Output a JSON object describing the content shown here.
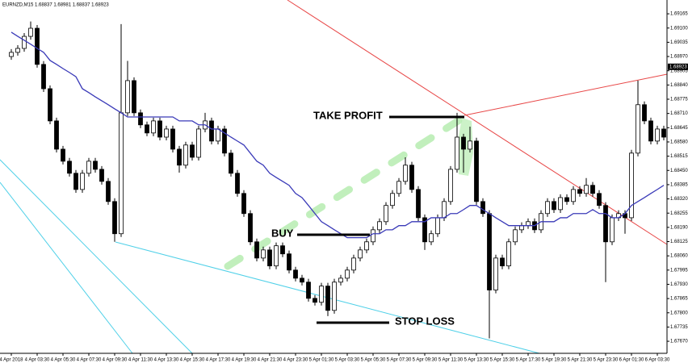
{
  "chart_data": {
    "type": "candlestick",
    "title": "EURNZD,M15  1.68837 1.68981 1.68837 1.68923",
    "categories": [
      "4 Apr 2018",
      null,
      null,
      null,
      "4 Apr 03:30",
      null,
      null,
      null,
      "4 Apr 05:30",
      null,
      null,
      null,
      "4 Apr 07:30",
      null,
      null,
      null,
      "4 Apr 09:30",
      null,
      null,
      null,
      "4 Apr 11:30",
      null,
      null,
      null,
      "4 Apr 13:30",
      null,
      null,
      null,
      "4 Apr 15:30",
      null,
      null,
      null,
      "4 Apr 17:30",
      null,
      null,
      null,
      "4 Apr 19:30",
      null,
      null,
      null,
      "4 Apr 21:30",
      null,
      null,
      null,
      "4 Apr 23:30",
      null,
      null,
      null,
      "5 Apr 01:30",
      null,
      null,
      null,
      "5 Apr 03:30",
      null,
      null,
      null,
      "5 Apr 05:30",
      null,
      null,
      null,
      "5 Apr 07:30",
      null,
      null,
      null,
      "5 Apr 09:30",
      null,
      null,
      null,
      "5 Apr 11:30",
      null,
      null,
      null,
      "5 Apr 13:30",
      null,
      null,
      null,
      "5 Apr 15:30",
      null,
      null,
      null,
      "5 Apr 17:30",
      null,
      null,
      null,
      "5 Apr 19:30",
      null,
      null,
      null,
      "5 Apr 21:30",
      null,
      null,
      null,
      "5 Apr 23:30",
      null,
      null,
      null,
      "6 Apr 01:30",
      null,
      null,
      null,
      "6 Apr 03:30",
      null
    ],
    "open": [
      1.6897,
      1.68989,
      1.69007,
      1.69062,
      1.69099,
      1.68934,
      1.68823,
      1.68676,
      1.68547,
      1.68492,
      1.68437,
      1.68363,
      1.68437,
      1.68492,
      1.68455,
      1.684,
      1.68308,
      1.68161,
      1.68713,
      1.6886,
      1.68713,
      1.68658,
      1.68621,
      1.68676,
      1.68602,
      1.68639,
      1.68547,
      1.68474,
      1.68566,
      1.6851,
      1.68639,
      1.68676,
      1.68584,
      1.68639,
      1.68529,
      1.68437,
      1.68345,
      1.68253,
      1.68124,
      1.6805,
      1.68087,
      1.68014,
      1.68106,
      1.68069,
      1.67995,
      1.67958,
      1.6794,
      1.67866,
      1.67848,
      1.67922,
      1.67811,
      1.6794,
      1.67958,
      1.67995,
      1.6805,
      1.68087,
      1.68124,
      1.68179,
      1.68216,
      1.6829,
      1.68345,
      1.684,
      1.68474,
      1.68363,
      1.68234,
      1.68124,
      1.68161,
      1.68234,
      1.68308,
      1.68455,
      1.68602,
      1.68547,
      1.68584,
      1.68308,
      1.68253,
      1.67904,
      1.6805,
      1.68014,
      1.68124,
      1.68179,
      1.68198,
      1.68216,
      1.68179,
      1.68253,
      1.68308,
      1.68271,
      1.68326,
      1.68308,
      1.68363,
      1.68345,
      1.68382,
      1.68345,
      1.6829,
      1.68124,
      1.68234,
      1.68253,
      1.68234,
      1.68529,
      1.6875,
      1.68676,
      1.68584,
      1.68639
    ],
    "high": [
      1.69004,
      1.69022,
      1.69077,
      1.6913,
      1.69114,
      1.68949,
      1.68838,
      1.68691,
      1.68562,
      1.68507,
      1.68452,
      1.68452,
      1.68507,
      1.68507,
      1.6847,
      1.68415,
      1.68323,
      1.69118,
      1.6895,
      1.68875,
      1.68728,
      1.68673,
      1.68691,
      1.68691,
      1.68654,
      1.68654,
      1.68562,
      1.68581,
      1.68581,
      1.68654,
      1.68713,
      1.68691,
      1.68654,
      1.68654,
      1.68544,
      1.68452,
      1.6836,
      1.68268,
      1.68139,
      1.68102,
      1.68102,
      1.68121,
      1.68121,
      1.68084,
      1.6801,
      1.67973,
      1.67955,
      1.67881,
      1.67937,
      1.67937,
      1.67955,
      1.67973,
      1.6801,
      1.68065,
      1.68102,
      1.68139,
      1.68194,
      1.68231,
      1.68305,
      1.6836,
      1.68415,
      1.6851,
      1.68489,
      1.68378,
      1.68249,
      1.68176,
      1.68249,
      1.68323,
      1.6847,
      1.68713,
      1.68617,
      1.6865,
      1.68599,
      1.68323,
      1.68268,
      1.68065,
      1.68065,
      1.68139,
      1.68194,
      1.68213,
      1.68231,
      1.68231,
      1.68268,
      1.68323,
      1.68323,
      1.68341,
      1.68341,
      1.68378,
      1.68378,
      1.68415,
      1.68397,
      1.6836,
      1.68305,
      1.68249,
      1.68268,
      1.68268,
      1.68544,
      1.6886,
      1.68765,
      1.68691,
      1.68654,
      1.68654
    ],
    "low": [
      1.68955,
      1.68974,
      1.68992,
      1.69047,
      1.68919,
      1.68808,
      1.68661,
      1.68532,
      1.68477,
      1.68422,
      1.68348,
      1.68348,
      1.68422,
      1.6844,
      1.68385,
      1.68293,
      1.68124,
      1.68146,
      1.68698,
      1.68698,
      1.68643,
      1.68606,
      1.68606,
      1.68587,
      1.68587,
      1.68532,
      1.6844,
      1.68459,
      1.68495,
      1.68495,
      1.68624,
      1.68569,
      1.68569,
      1.68514,
      1.68422,
      1.6833,
      1.68238,
      1.68109,
      1.68035,
      1.68035,
      1.67999,
      1.67999,
      1.68054,
      1.6798,
      1.67943,
      1.67925,
      1.67851,
      1.67833,
      1.67833,
      1.67785,
      1.67796,
      1.67925,
      1.67943,
      1.6798,
      1.68035,
      1.68072,
      1.68109,
      1.68164,
      1.68201,
      1.68275,
      1.6833,
      1.68385,
      1.68348,
      1.68219,
      1.68087,
      1.68109,
      1.68146,
      1.68219,
      1.68293,
      1.6844,
      1.6844,
      1.68532,
      1.68293,
      1.68238,
      1.67683,
      1.67889,
      1.67999,
      1.67999,
      1.68109,
      1.68164,
      1.68183,
      1.68164,
      1.68164,
      1.68238,
      1.68256,
      1.68256,
      1.68293,
      1.68293,
      1.6833,
      1.6833,
      1.6833,
      1.68275,
      1.6794,
      1.68109,
      1.68219,
      1.68161,
      1.68219,
      1.68514,
      1.68661,
      1.68569,
      1.68569,
      1.68587
    ],
    "close": [
      1.68989,
      1.69007,
      1.69062,
      1.69099,
      1.68934,
      1.68823,
      1.68676,
      1.68547,
      1.68492,
      1.68437,
      1.68363,
      1.68437,
      1.68492,
      1.68455,
      1.684,
      1.68308,
      1.68161,
      1.68713,
      1.6886,
      1.68713,
      1.68658,
      1.68621,
      1.68676,
      1.68602,
      1.68639,
      1.68547,
      1.68474,
      1.68566,
      1.6851,
      1.68639,
      1.68676,
      1.68584,
      1.68639,
      1.68529,
      1.68437,
      1.68345,
      1.68253,
      1.68124,
      1.6805,
      1.68087,
      1.68014,
      1.68106,
      1.68069,
      1.67995,
      1.67958,
      1.6794,
      1.67866,
      1.67848,
      1.67922,
      1.67811,
      1.6794,
      1.67958,
      1.67995,
      1.6805,
      1.68087,
      1.68124,
      1.68179,
      1.68216,
      1.6829,
      1.68345,
      1.684,
      1.68474,
      1.68363,
      1.68234,
      1.68124,
      1.68161,
      1.68234,
      1.68308,
      1.68455,
      1.68602,
      1.68547,
      1.68584,
      1.68308,
      1.68253,
      1.67904,
      1.6805,
      1.68014,
      1.68124,
      1.68179,
      1.68198,
      1.68216,
      1.68179,
      1.68253,
      1.68308,
      1.68271,
      1.68326,
      1.68308,
      1.68363,
      1.68345,
      1.68382,
      1.68345,
      1.6829,
      1.68124,
      1.68234,
      1.68253,
      1.68234,
      1.68529,
      1.6875,
      1.68676,
      1.68584,
      1.68639,
      1.68602
    ],
    "ma_values": [
      1.69081,
      1.69062,
      1.69044,
      1.69026,
      1.69007,
      1.68989,
      1.68952,
      1.68934,
      1.68915,
      1.68897,
      1.68878,
      1.68823,
      1.68805,
      1.68786,
      1.68768,
      1.6875,
      1.68731,
      1.68713,
      1.68694,
      1.68694,
      1.68694,
      1.68694,
      1.68694,
      1.68694,
      1.68694,
      1.68694,
      1.68676,
      1.68676,
      1.68676,
      1.68658,
      1.68658,
      1.68639,
      1.68639,
      1.68621,
      1.68602,
      1.68584,
      1.68566,
      1.68529,
      1.68492,
      1.68474,
      1.68437,
      1.68418,
      1.684,
      1.68382,
      1.68345,
      1.68326,
      1.6829,
      1.68253,
      1.68216,
      1.68198,
      1.68179,
      1.68161,
      1.68143,
      1.68143,
      1.68143,
      1.68143,
      1.68161,
      1.68161,
      1.68179,
      1.68179,
      1.68198,
      1.68198,
      1.68216,
      1.68216,
      1.68216,
      1.68234,
      1.68234,
      1.68234,
      1.68253,
      1.68253,
      1.68271,
      1.6829,
      1.6829,
      1.68271,
      1.68253,
      1.68234,
      1.68216,
      1.68198,
      1.68198,
      1.68198,
      1.68198,
      1.68198,
      1.68216,
      1.68216,
      1.68216,
      1.68234,
      1.68234,
      1.68253,
      1.68253,
      1.68253,
      1.68271,
      1.68253,
      1.68253,
      1.68234,
      1.68234,
      1.68253,
      1.6829,
      1.68308,
      1.68326,
      1.68345,
      1.68363,
      1.68382
    ],
    "ma_color": "#3a3ab8",
    "up_color": "#ffffff",
    "down_color": "#000000",
    "last_price": 1.68923,
    "ylim": [
      1.67615,
      1.69228
    ],
    "yticks": [
      1.69165,
      {
        "value": 1.691,
        "label": "1.69100"
      },
      1.69035,
      {
        "value": 1.6897,
        "label": "1.68970"
      },
      1.68905,
      {
        "value": 1.6884,
        "label": "1.68840"
      },
      1.68775,
      {
        "value": 1.6871,
        "label": "1.68710"
      },
      1.68645,
      {
        "value": 1.6858,
        "label": "1.68580"
      },
      1.68515,
      {
        "value": 1.6845,
        "label": "1.68450"
      },
      1.68385,
      {
        "value": 1.6832,
        "label": "1.68320"
      },
      1.68255,
      {
        "value": 1.6819,
        "label": "1.68190"
      },
      1.68125,
      {
        "value": 1.6806,
        "label": "1.68060"
      },
      1.67995,
      {
        "value": 1.6793,
        "label": "1.67930"
      },
      1.67865,
      {
        "value": 1.678,
        "label": "1.67800"
      },
      1.67735,
      {
        "value": 1.6767,
        "label": "1.67670"
      }
    ],
    "annotations": [
      "TAKE PROFIT",
      "BUY",
      "STOP LOSS"
    ]
  }
}
